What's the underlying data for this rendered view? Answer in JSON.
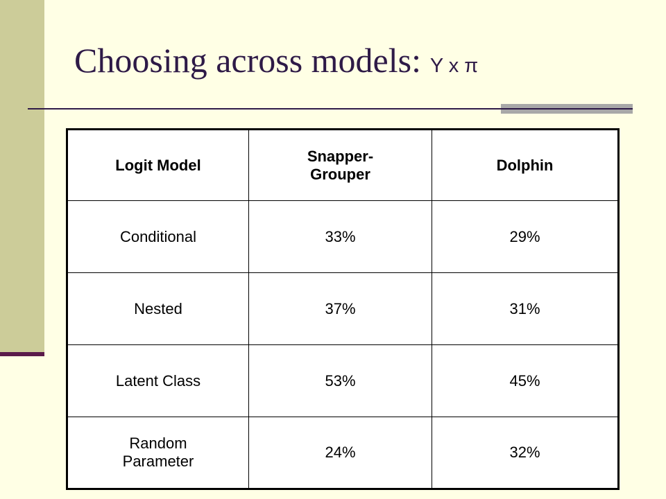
{
  "slide": {
    "title_main": "Choosing across models:",
    "title_symbol": "Y x π"
  },
  "table": {
    "headers": [
      "Logit Model",
      "Snapper-\nGrouper",
      "Dolphin"
    ],
    "rows": [
      {
        "model": "Conditional",
        "snapper_grouper": "33%",
        "dolphin": "29%"
      },
      {
        "model": "Nested",
        "snapper_grouper": "37%",
        "dolphin": "31%"
      },
      {
        "model": "Latent Class",
        "snapper_grouper": "53%",
        "dolphin": "45%"
      },
      {
        "model": "Random\nParameter",
        "snapper_grouper": "24%",
        "dolphin": "32%"
      }
    ]
  },
  "colors": {
    "background": "#FFFFE5",
    "sidebar": "#CCCC99",
    "title": "#2E1A47",
    "accent": "#5A1A4A",
    "rule_accent": "#A8A8A8"
  }
}
